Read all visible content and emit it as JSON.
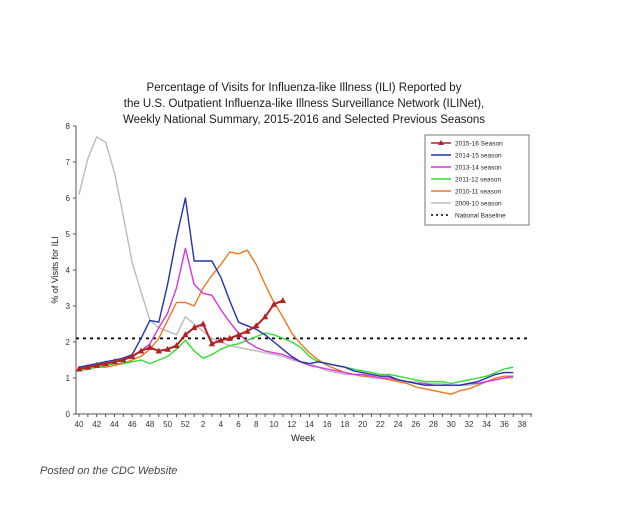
{
  "caption": "Posted on the CDC Website",
  "chart_data": {
    "type": "line",
    "title": [
      "Percentage of Visits for Influenza-like Illness (ILI) Reported by",
      "the U.S. Outpatient Influenza-like Illness Surveillance Network (ILINet),",
      "Weekly National Summary, 2015-2016 and Selected Previous Seasons"
    ],
    "xlabel": "Week",
    "ylabel": "% of Visits for ILI",
    "ylim": [
      0,
      8
    ],
    "yticks": [
      "0",
      "1",
      "2",
      "3",
      "4",
      "5",
      "6",
      "7",
      "8"
    ],
    "xticks": [
      "40",
      "42",
      "44",
      "46",
      "48",
      "50",
      "52",
      "2",
      "4",
      "6",
      "8",
      "10",
      "12",
      "14",
      "16",
      "18",
      "20",
      "22",
      "24",
      "26",
      "28",
      "30",
      "32",
      "34",
      "36",
      "38"
    ],
    "grid": false,
    "legend_position": "top-right",
    "baseline": {
      "name": "National Baseline",
      "value": 2.1,
      "color": "#000000"
    },
    "series": [
      {
        "name": "2015-16 Season",
        "color": "#b22222",
        "marker": "triangle",
        "values": [
          1.25,
          1.3,
          1.35,
          1.4,
          1.45,
          1.5,
          1.6,
          1.75,
          1.85,
          1.75,
          1.8,
          1.9,
          2.2,
          2.4,
          2.5,
          1.95,
          2.05,
          2.1,
          2.2,
          2.3,
          2.45,
          2.7,
          3.05,
          3.15
        ]
      },
      {
        "name": "2014-15 season",
        "color": "#2233aa",
        "values": [
          1.3,
          1.35,
          1.4,
          1.45,
          1.5,
          1.55,
          1.65,
          2.1,
          2.6,
          2.55,
          3.6,
          4.9,
          6.0,
          4.25,
          4.25,
          4.25,
          3.8,
          3.15,
          2.55,
          2.45,
          2.35,
          2.2,
          2.0,
          1.8,
          1.6,
          1.45,
          1.4,
          1.45,
          1.4,
          1.35,
          1.3,
          1.2,
          1.15,
          1.1,
          1.05,
          1.05,
          0.95,
          0.9,
          0.85,
          0.8,
          0.8,
          0.8,
          0.8,
          0.8,
          0.85,
          0.9,
          1.0,
          1.1,
          1.15,
          1.15
        ]
      },
      {
        "name": "2013-14 season",
        "color": "#dd33dd",
        "values": [
          1.25,
          1.3,
          1.35,
          1.4,
          1.45,
          1.5,
          1.6,
          1.75,
          1.95,
          2.4,
          2.8,
          3.5,
          4.6,
          3.6,
          3.35,
          3.3,
          2.9,
          2.55,
          2.25,
          2.0,
          1.85,
          1.75,
          1.7,
          1.65,
          1.55,
          1.45,
          1.35,
          1.3,
          1.25,
          1.2,
          1.15,
          1.1,
          1.1,
          1.05,
          1.0,
          1.0,
          0.95,
          0.9,
          0.85,
          0.85,
          0.8,
          0.8,
          0.8,
          0.8,
          0.85,
          0.85,
          0.9,
          0.95,
          1.0,
          1.05
        ]
      },
      {
        "name": "2011-12 season",
        "color": "#33dd33",
        "values": [
          1.2,
          1.25,
          1.3,
          1.35,
          1.4,
          1.4,
          1.45,
          1.5,
          1.4,
          1.5,
          1.6,
          1.8,
          2.05,
          1.75,
          1.55,
          1.65,
          1.8,
          1.9,
          1.95,
          2.05,
          2.15,
          2.25,
          2.2,
          2.1,
          2.0,
          1.85,
          1.6,
          1.45,
          1.4,
          1.35,
          1.3,
          1.25,
          1.2,
          1.15,
          1.1,
          1.1,
          1.05,
          1.0,
          0.95,
          0.9,
          0.9,
          0.9,
          0.85,
          0.9,
          0.95,
          1.0,
          1.05,
          1.15,
          1.25,
          1.3
        ]
      },
      {
        "name": "2010-11 season",
        "color": "#ee7722",
        "values": [
          1.2,
          1.25,
          1.3,
          1.3,
          1.35,
          1.4,
          1.5,
          1.6,
          1.8,
          2.1,
          2.6,
          3.1,
          3.1,
          3.0,
          3.5,
          3.85,
          4.15,
          4.5,
          4.45,
          4.55,
          4.15,
          3.6,
          3.1,
          2.7,
          2.25,
          1.95,
          1.7,
          1.5,
          1.35,
          1.25,
          1.15,
          1.1,
          1.05,
          1.05,
          1.0,
          0.95,
          0.9,
          0.85,
          0.75,
          0.7,
          0.65,
          0.6,
          0.55,
          0.65,
          0.7,
          0.8,
          0.9,
          1.0,
          1.05,
          1.05
        ]
      },
      {
        "name": "2009-10 season",
        "color": "#bbbbbb",
        "values": [
          6.1,
          7.1,
          7.7,
          7.55,
          6.7,
          5.5,
          4.2,
          3.4,
          2.6,
          2.4,
          2.3,
          2.2,
          2.7,
          2.5,
          2.3,
          2.1,
          2.0,
          1.9,
          1.85,
          1.8,
          1.75,
          1.7,
          1.65,
          1.6,
          1.5,
          1.45,
          1.4,
          1.3,
          1.2,
          1.15,
          1.1,
          1.1,
          1.05,
          1.0,
          1.0,
          0.95,
          0.95,
          0.9,
          0.9,
          0.85,
          0.85,
          0.85,
          0.8,
          0.8,
          0.8,
          0.85,
          0.9,
          0.95,
          1.0,
          1.0
        ]
      }
    ]
  }
}
